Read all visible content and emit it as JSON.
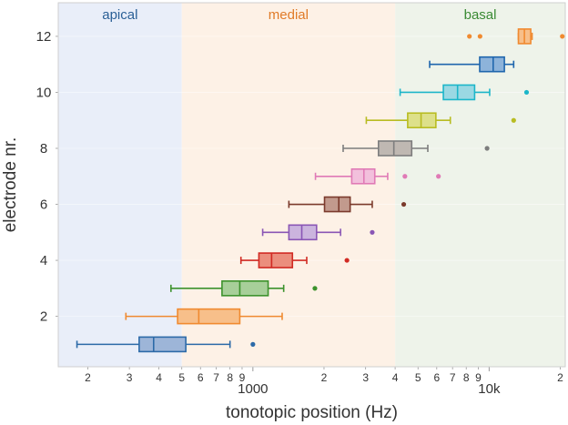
{
  "chart_data": {
    "type": "boxplot",
    "title": "",
    "xlabel": "tonotopic position (Hz)",
    "ylabel": "electrode nr.",
    "x_scale": "log",
    "xlim": [
      150,
      21000
    ],
    "ylim": [
      0.2,
      13.2
    ],
    "x_minor_tick_labels": [
      {
        "value": 200,
        "label": "2"
      },
      {
        "value": 300,
        "label": "3"
      },
      {
        "value": 400,
        "label": "4"
      },
      {
        "value": 500,
        "label": "5"
      },
      {
        "value": 600,
        "label": "6"
      },
      {
        "value": 700,
        "label": "7"
      },
      {
        "value": 800,
        "label": "8"
      },
      {
        "value": 900,
        "label": "9"
      },
      {
        "value": 2000,
        "label": "2"
      },
      {
        "value": 3000,
        "label": "3"
      },
      {
        "value": 4000,
        "label": "4"
      },
      {
        "value": 5000,
        "label": "5"
      },
      {
        "value": 6000,
        "label": "6"
      },
      {
        "value": 7000,
        "label": "7"
      },
      {
        "value": 8000,
        "label": "8"
      },
      {
        "value": 9000,
        "label": "9"
      },
      {
        "value": 20000,
        "label": "2"
      }
    ],
    "x_major_tick_labels": [
      {
        "value": 1000,
        "label": "1000"
      },
      {
        "value": 10000,
        "label": "10k"
      }
    ],
    "y_ticks": [
      {
        "value": 2,
        "label": "2"
      },
      {
        "value": 4,
        "label": "4"
      },
      {
        "value": 6,
        "label": "6"
      },
      {
        "value": 8,
        "label": "8"
      },
      {
        "value": 10,
        "label": "10"
      },
      {
        "value": 12,
        "label": "12"
      }
    ],
    "regions": [
      {
        "name": "apical",
        "from": 150,
        "to": 500,
        "fill": "#e9eef9",
        "text_color": "#2a5f96"
      },
      {
        "name": "medial",
        "from": 500,
        "to": 4000,
        "fill": "#fdf1e6",
        "text_color": "#e07b28"
      },
      {
        "name": "basal",
        "from": 4000,
        "to": 21000,
        "fill": "#eef3ea",
        "text_color": "#3a8a34"
      }
    ],
    "series": [
      {
        "electrode": 1,
        "color": "#2c6aa8",
        "fill": "#9db5d8",
        "whisker_low": 180,
        "q1": 330,
        "median": 380,
        "q3": 520,
        "whisker_high": 800,
        "outliers": [
          1000
        ]
      },
      {
        "electrode": 2,
        "color": "#f08a30",
        "fill": "#f7bf8a",
        "whisker_low": 290,
        "q1": 480,
        "median": 590,
        "q3": 880,
        "whisker_high": 1330,
        "outliers": []
      },
      {
        "electrode": 3,
        "color": "#3c922c",
        "fill": "#a7cf99",
        "whisker_low": 450,
        "q1": 740,
        "median": 880,
        "q3": 1160,
        "whisker_high": 1350,
        "outliers": [
          1830
        ]
      },
      {
        "electrode": 4,
        "color": "#d12a23",
        "fill": "#eb8e7d",
        "whisker_low": 890,
        "q1": 1060,
        "median": 1200,
        "q3": 1470,
        "whisker_high": 1690,
        "outliers": [
          2500
        ]
      },
      {
        "electrode": 5,
        "color": "#8a56b5",
        "fill": "#cbb4de",
        "whisker_low": 1100,
        "q1": 1420,
        "median": 1610,
        "q3": 1860,
        "whisker_high": 2350,
        "outliers": [
          3200
        ]
      },
      {
        "electrode": 6,
        "color": "#7b3a2c",
        "fill": "#c29a8d",
        "whisker_low": 1420,
        "q1": 2010,
        "median": 2310,
        "q3": 2580,
        "whisker_high": 3200,
        "outliers": [
          4350
        ]
      },
      {
        "electrode": 7,
        "color": "#e07ab6",
        "fill": "#f2c0dc",
        "whisker_low": 1840,
        "q1": 2620,
        "median": 2950,
        "q3": 3280,
        "whisker_high": 3720,
        "outliers": [
          4400,
          6100
        ]
      },
      {
        "electrode": 8,
        "color": "#7d7d7d",
        "fill": "#bfb8b2",
        "whisker_low": 2410,
        "q1": 3400,
        "median": 3950,
        "q3": 4700,
        "whisker_high": 5500,
        "outliers": [
          9800
        ]
      },
      {
        "electrode": 9,
        "color": "#b8bc22",
        "fill": "#dde08a",
        "whisker_low": 3020,
        "q1": 4520,
        "median": 5150,
        "q3": 5950,
        "whisker_high": 6850,
        "outliers": [
          12700
        ]
      },
      {
        "electrode": 10,
        "color": "#1cb6c9",
        "fill": "#9ad8e3",
        "whisker_low": 4200,
        "q1": 6400,
        "median": 7350,
        "q3": 8680,
        "whisker_high": 10050,
        "outliers": [
          14400
        ]
      },
      {
        "electrode": 11,
        "color": "#1f66ad",
        "fill": "#8db3da",
        "whisker_low": 5600,
        "q1": 9120,
        "median": 10400,
        "q3": 11600,
        "whisker_high": 12700,
        "outliers": []
      },
      {
        "electrode": 12,
        "color": "#f08a30",
        "fill": "#f7bf8a",
        "whisker_low": 13300,
        "q1": 13300,
        "median": 14100,
        "q3": 15000,
        "whisker_high": 15200,
        "outliers": [
          8250,
          9150,
          20400
        ]
      }
    ]
  }
}
